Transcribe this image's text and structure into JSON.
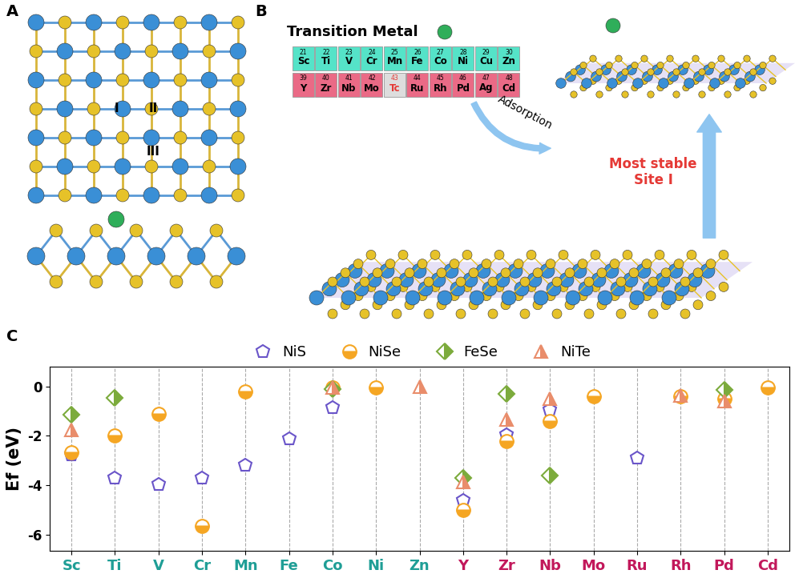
{
  "panel_labels": [
    "A",
    "B",
    "C"
  ],
  "panel_a": {
    "site_labels": [
      "I",
      "II",
      "III"
    ]
  },
  "panel_b": {
    "title": "Transition Metal",
    "periodic_rows": [
      {
        "color": "#55e3c8",
        "label_color": "#1f9e96",
        "elements": [
          {
            "number": 21,
            "symbol": "Sc"
          },
          {
            "number": 22,
            "symbol": "Ti"
          },
          {
            "number": 23,
            "symbol": "V"
          },
          {
            "number": 24,
            "symbol": "Cr"
          },
          {
            "number": 25,
            "symbol": "Mn"
          },
          {
            "number": 26,
            "symbol": "Fe"
          },
          {
            "number": 27,
            "symbol": "Co"
          },
          {
            "number": 28,
            "symbol": "Ni"
          },
          {
            "number": 29,
            "symbol": "Cu"
          },
          {
            "number": 30,
            "symbol": "Zn"
          }
        ]
      },
      {
        "color": "#ea6a86",
        "label_color": "#c2185b",
        "elements": [
          {
            "number": 39,
            "symbol": "Y"
          },
          {
            "number": 40,
            "symbol": "Zr"
          },
          {
            "number": 41,
            "symbol": "Nb"
          },
          {
            "number": 42,
            "symbol": "Mo"
          },
          {
            "number": 43,
            "symbol": "Tc"
          },
          {
            "number": 44,
            "symbol": "Ru"
          },
          {
            "number": 45,
            "symbol": "Rh"
          },
          {
            "number": 46,
            "symbol": "Pd"
          },
          {
            "number": 47,
            "symbol": "Ag"
          },
          {
            "number": 48,
            "symbol": "Cd"
          }
        ]
      }
    ],
    "unavailable": [
      "Tc"
    ],
    "arrow_text": "Adsorption",
    "result_text": "Most stable\nSite I"
  },
  "chart_data": {
    "type": "scatter",
    "ylabel": "Ef (eV)",
    "categories": [
      "Sc",
      "Ti",
      "V",
      "Cr",
      "Mn",
      "Fe",
      "Co",
      "Ni",
      "Zn",
      "Y",
      "Zr",
      "Nb",
      "Mo",
      "Ru",
      "Rh",
      "Pd",
      "Cd"
    ],
    "ylim": [
      -6.65,
      0.8
    ],
    "yticks": [
      -6,
      -4,
      -2,
      0
    ],
    "grid": true,
    "legend": "top",
    "series": [
      {
        "name": "NiS",
        "color": "#6a55c9",
        "marker": "pentagon_open",
        "values": [
          -2.75,
          -3.7,
          -3.95,
          -3.7,
          -3.2,
          -2.1,
          -0.85,
          null,
          null,
          -4.6,
          -1.95,
          -0.95,
          null,
          -2.9,
          null,
          null,
          null
        ]
      },
      {
        "name": "NiSe",
        "color": "#f5a623",
        "marker": "half_circle",
        "values": [
          -2.65,
          -2.0,
          -1.1,
          -5.65,
          -0.2,
          null,
          -0.05,
          -0.05,
          null,
          -5.0,
          -2.2,
          -1.4,
          -0.4,
          null,
          -0.4,
          -0.5,
          -0.05
        ]
      },
      {
        "name": "FeSe",
        "color": "#7cab3c",
        "marker": "half_diamond",
        "values": [
          -1.15,
          -0.45,
          null,
          null,
          null,
          null,
          -0.1,
          null,
          null,
          -3.7,
          -0.3,
          -3.6,
          null,
          null,
          null,
          -0.15,
          null
        ]
      },
      {
        "name": "NiTe",
        "color": "#e98d6b",
        "marker": "half_triangle",
        "values": [
          -1.75,
          null,
          null,
          null,
          null,
          null,
          -0.05,
          null,
          0.0,
          -3.85,
          -1.35,
          -0.5,
          null,
          null,
          -0.35,
          -0.6,
          null
        ]
      }
    ]
  }
}
